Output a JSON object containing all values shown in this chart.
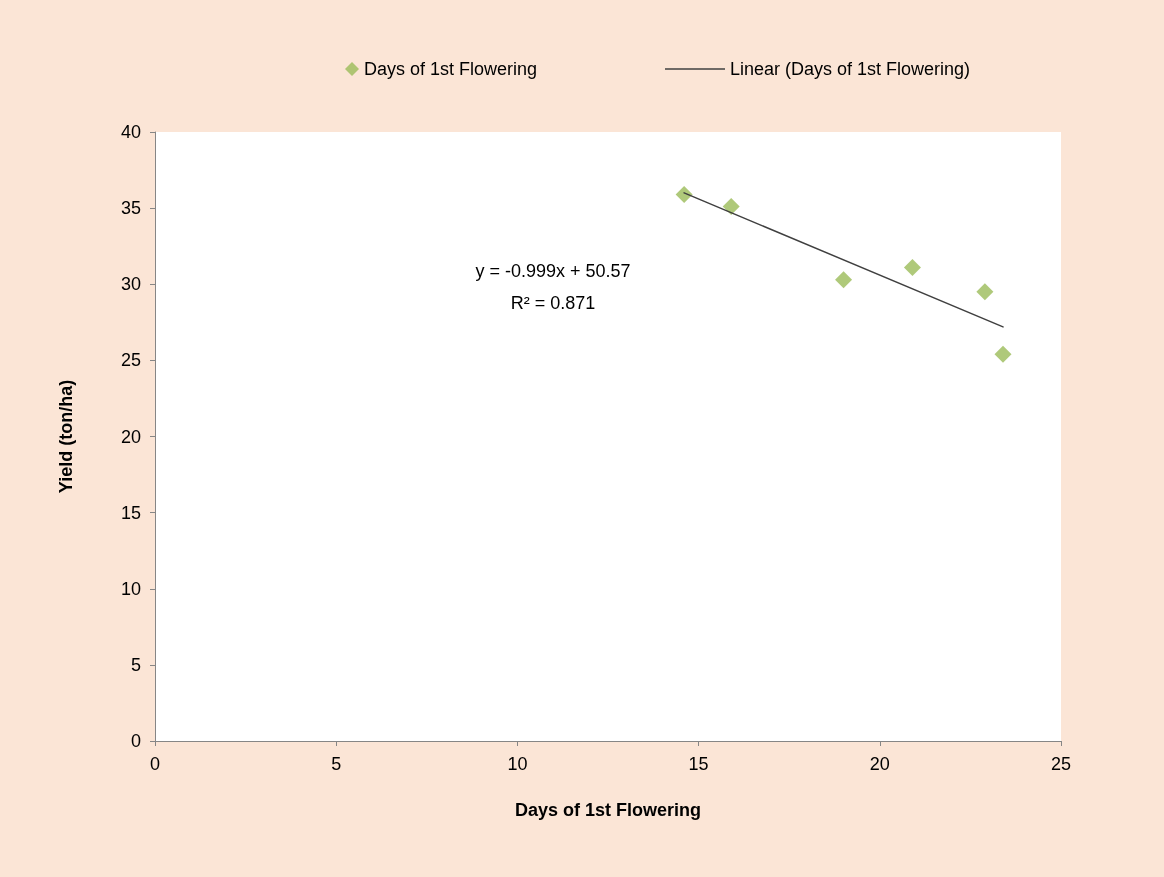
{
  "chart_data": {
    "type": "scatter",
    "xlabel": "Days of 1st Flowering",
    "ylabel": "Yield (ton/ha)",
    "xlim": [
      0,
      25
    ],
    "xticks": [
      0,
      5,
      10,
      15,
      20,
      25
    ],
    "ylim": [
      0,
      40
    ],
    "yticks": [
      0,
      5,
      10,
      15,
      20,
      25,
      30,
      35,
      40
    ],
    "grid": false,
    "legend": "top",
    "marker": "diamond",
    "annotations": [
      "y = -0.999x + 50.57",
      "R² = 0.871"
    ],
    "series": [
      {
        "name": "Days of 1st Flowering",
        "color": "#9bbb59",
        "x": [
          14.6,
          15.9,
          19.0,
          20.9,
          22.9,
          23.4
        ],
        "values": [
          35.9,
          35.1,
          30.3,
          31.1,
          29.5,
          25.4
        ]
      },
      {
        "name": "Linear (Days of 1st Flowering)",
        "type": "line",
        "color": "#404040",
        "marker": "none",
        "line_style": "solid",
        "x": [
          14.6,
          23.4
        ],
        "values": [
          36.0,
          27.2
        ]
      }
    ]
  }
}
